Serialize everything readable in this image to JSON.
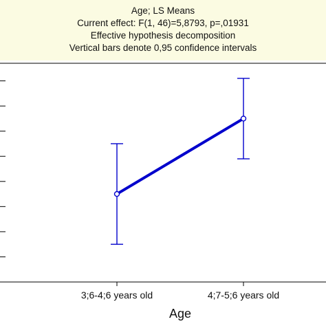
{
  "chart_data": {
    "type": "line",
    "title": "Age; LS Means",
    "subtitle_lines": [
      "Current effect: F(1, 46)=5,8793, p=,01931",
      "Effective hypothesis decomposition",
      "Vertical bars denote 0,95 confidence intervals"
    ],
    "xlabel": "Age",
    "ylabel": "",
    "categories": [
      "3;6-4;6 years old",
      "4;7-5;6 years old"
    ],
    "series": [
      {
        "values": [
          0.0,
          1.5
        ],
        "ci_lower": [
          -1.0,
          0.7
        ],
        "ci_upper": [
          1.0,
          2.3
        ]
      }
    ],
    "ylim": [
      -1.75,
      2.6
    ],
    "y_gridlines": [
      -1.25,
      -0.75,
      -0.25,
      0.25,
      0.75,
      1.25,
      1.75,
      2.25
    ],
    "grid": false,
    "colors": {
      "series": "#0000cc",
      "header_bg": "#fbfbe2",
      "axis": "#000000"
    }
  }
}
